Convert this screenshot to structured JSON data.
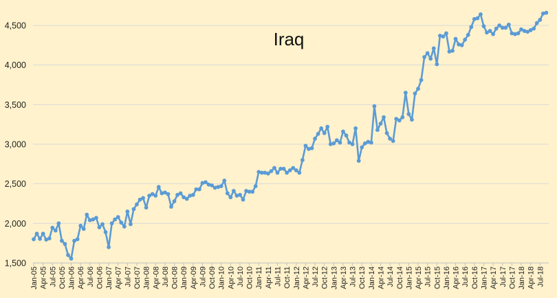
{
  "chart_data": {
    "type": "line",
    "title": "Iraq",
    "xlabel": "",
    "ylabel": "",
    "ylim": [
      1500,
      4700
    ],
    "yticks": [
      1500,
      2000,
      2500,
      3000,
      3500,
      4000,
      4500
    ],
    "ytick_labels": [
      "1,500",
      "2,000",
      "2,500",
      "3,000",
      "3,500",
      "4,000",
      "4,500"
    ],
    "xtick_labels": [
      "Jan-05",
      "Apr-05",
      "Jul-05",
      "Oct-05",
      "Jan-06",
      "Apr-06",
      "Jul-06",
      "Oct-06",
      "Jan-07",
      "Apr-07",
      "Jul-07",
      "Oct-07",
      "Jan-08",
      "Apr-08",
      "Jul-08",
      "Oct-08",
      "Jan-09",
      "Apr-09",
      "Jul-09",
      "Oct-09",
      "Jan-10",
      "Apr-10",
      "Jul-10",
      "Oct-10",
      "Jan-11",
      "Apr-11",
      "Jul-11",
      "Oct-11",
      "Jan-12",
      "Apr-12",
      "Jul-12",
      "Oct-12",
      "Jan-13",
      "Apr-13",
      "Jul-13",
      "Oct-13",
      "Jan-14",
      "Apr-14",
      "Jul-14",
      "Oct-14",
      "Jan-15",
      "Apr-15",
      "Jul-15",
      "Oct-15",
      "Jan-16",
      "Apr-16",
      "Jul-16",
      "Oct-16",
      "Jan-17",
      "Apr-17",
      "Jul-17",
      "Oct-17",
      "Jan-18",
      "Apr-18",
      "Jul-18"
    ],
    "grid": true,
    "series": [
      {
        "color": "#5B9BD5",
        "x_start": "Jan-05",
        "frequency": "monthly",
        "values": [
          1800,
          1870,
          1805,
          1870,
          1795,
          1810,
          1945,
          1910,
          2000,
          1780,
          1740,
          1600,
          1555,
          1780,
          1800,
          1970,
          1930,
          2110,
          2040,
          2050,
          2070,
          1950,
          1990,
          1890,
          1700,
          2000,
          2050,
          2080,
          2010,
          1960,
          2150,
          1990,
          2180,
          2240,
          2300,
          2320,
          2200,
          2350,
          2370,
          2350,
          2460,
          2380,
          2390,
          2370,
          2210,
          2280,
          2360,
          2380,
          2330,
          2310,
          2350,
          2360,
          2430,
          2430,
          2510,
          2520,
          2490,
          2480,
          2450,
          2460,
          2470,
          2540,
          2380,
          2330,
          2410,
          2350,
          2360,
          2300,
          2410,
          2400,
          2400,
          2470,
          2650,
          2640,
          2640,
          2630,
          2660,
          2700,
          2640,
          2690,
          2690,
          2640,
          2670,
          2700,
          2670,
          2640,
          2800,
          2980,
          2940,
          2950,
          3070,
          3130,
          3200,
          3140,
          3220,
          3000,
          3010,
          3050,
          3020,
          3160,
          3110,
          3020,
          3000,
          3200,
          2790,
          2960,
          3010,
          3030,
          3020,
          3480,
          3180,
          3260,
          3340,
          3140,
          3070,
          3040,
          3320,
          3300,
          3340,
          3650,
          3380,
          3310,
          3640,
          3700,
          3810,
          4100,
          4150,
          4080,
          4210,
          4010,
          4370,
          4360,
          4400,
          4170,
          4180,
          4330,
          4260,
          4250,
          4320,
          4380,
          4480,
          4580,
          4590,
          4640,
          4490,
          4410,
          4430,
          4390,
          4460,
          4500,
          4470,
          4470,
          4510,
          4400,
          4390,
          4400,
          4450,
          4430,
          4420,
          4440,
          4460,
          4530,
          4570,
          4650,
          4660
        ]
      }
    ]
  }
}
